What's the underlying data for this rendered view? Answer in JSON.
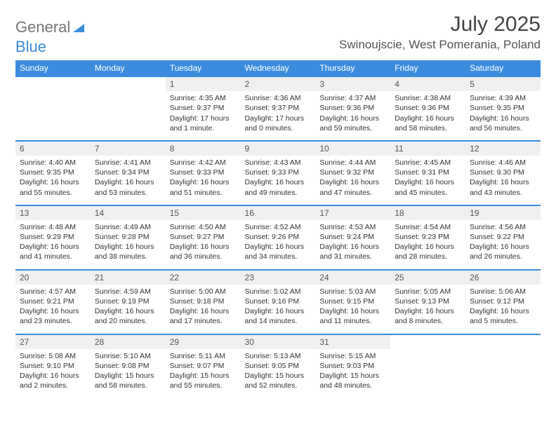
{
  "brand": {
    "part1": "General",
    "part2": "Blue"
  },
  "title": "July 2025",
  "location": "Swinoujscie, West Pomerania, Poland",
  "colors": {
    "header_bg": "#3b8cde",
    "daynum_bg": "#eef0f2",
    "row_border": "#3b8cde",
    "text": "#333333",
    "title_text": "#444444"
  },
  "weekdays": [
    "Sunday",
    "Monday",
    "Tuesday",
    "Wednesday",
    "Thursday",
    "Friday",
    "Saturday"
  ],
  "weeks": [
    [
      null,
      null,
      {
        "n": "1",
        "sunrise": "4:35 AM",
        "sunset": "9:37 PM",
        "daylight": "17 hours and 1 minute."
      },
      {
        "n": "2",
        "sunrise": "4:36 AM",
        "sunset": "9:37 PM",
        "daylight": "17 hours and 0 minutes."
      },
      {
        "n": "3",
        "sunrise": "4:37 AM",
        "sunset": "9:36 PM",
        "daylight": "16 hours and 59 minutes."
      },
      {
        "n": "4",
        "sunrise": "4:38 AM",
        "sunset": "9:36 PM",
        "daylight": "16 hours and 58 minutes."
      },
      {
        "n": "5",
        "sunrise": "4:39 AM",
        "sunset": "9:35 PM",
        "daylight": "16 hours and 56 minutes."
      }
    ],
    [
      {
        "n": "6",
        "sunrise": "4:40 AM",
        "sunset": "9:35 PM",
        "daylight": "16 hours and 55 minutes."
      },
      {
        "n": "7",
        "sunrise": "4:41 AM",
        "sunset": "9:34 PM",
        "daylight": "16 hours and 53 minutes."
      },
      {
        "n": "8",
        "sunrise": "4:42 AM",
        "sunset": "9:33 PM",
        "daylight": "16 hours and 51 minutes."
      },
      {
        "n": "9",
        "sunrise": "4:43 AM",
        "sunset": "9:33 PM",
        "daylight": "16 hours and 49 minutes."
      },
      {
        "n": "10",
        "sunrise": "4:44 AM",
        "sunset": "9:32 PM",
        "daylight": "16 hours and 47 minutes."
      },
      {
        "n": "11",
        "sunrise": "4:45 AM",
        "sunset": "9:31 PM",
        "daylight": "16 hours and 45 minutes."
      },
      {
        "n": "12",
        "sunrise": "4:46 AM",
        "sunset": "9:30 PM",
        "daylight": "16 hours and 43 minutes."
      }
    ],
    [
      {
        "n": "13",
        "sunrise": "4:48 AM",
        "sunset": "9:29 PM",
        "daylight": "16 hours and 41 minutes."
      },
      {
        "n": "14",
        "sunrise": "4:49 AM",
        "sunset": "9:28 PM",
        "daylight": "16 hours and 38 minutes."
      },
      {
        "n": "15",
        "sunrise": "4:50 AM",
        "sunset": "9:27 PM",
        "daylight": "16 hours and 36 minutes."
      },
      {
        "n": "16",
        "sunrise": "4:52 AM",
        "sunset": "9:26 PM",
        "daylight": "16 hours and 34 minutes."
      },
      {
        "n": "17",
        "sunrise": "4:53 AM",
        "sunset": "9:24 PM",
        "daylight": "16 hours and 31 minutes."
      },
      {
        "n": "18",
        "sunrise": "4:54 AM",
        "sunset": "9:23 PM",
        "daylight": "16 hours and 28 minutes."
      },
      {
        "n": "19",
        "sunrise": "4:56 AM",
        "sunset": "9:22 PM",
        "daylight": "16 hours and 26 minutes."
      }
    ],
    [
      {
        "n": "20",
        "sunrise": "4:57 AM",
        "sunset": "9:21 PM",
        "daylight": "16 hours and 23 minutes."
      },
      {
        "n": "21",
        "sunrise": "4:59 AM",
        "sunset": "9:19 PM",
        "daylight": "16 hours and 20 minutes."
      },
      {
        "n": "22",
        "sunrise": "5:00 AM",
        "sunset": "9:18 PM",
        "daylight": "16 hours and 17 minutes."
      },
      {
        "n": "23",
        "sunrise": "5:02 AM",
        "sunset": "9:16 PM",
        "daylight": "16 hours and 14 minutes."
      },
      {
        "n": "24",
        "sunrise": "5:03 AM",
        "sunset": "9:15 PM",
        "daylight": "16 hours and 11 minutes."
      },
      {
        "n": "25",
        "sunrise": "5:05 AM",
        "sunset": "9:13 PM",
        "daylight": "16 hours and 8 minutes."
      },
      {
        "n": "26",
        "sunrise": "5:06 AM",
        "sunset": "9:12 PM",
        "daylight": "16 hours and 5 minutes."
      }
    ],
    [
      {
        "n": "27",
        "sunrise": "5:08 AM",
        "sunset": "9:10 PM",
        "daylight": "16 hours and 2 minutes."
      },
      {
        "n": "28",
        "sunrise": "5:10 AM",
        "sunset": "9:08 PM",
        "daylight": "15 hours and 58 minutes."
      },
      {
        "n": "29",
        "sunrise": "5:11 AM",
        "sunset": "9:07 PM",
        "daylight": "15 hours and 55 minutes."
      },
      {
        "n": "30",
        "sunrise": "5:13 AM",
        "sunset": "9:05 PM",
        "daylight": "15 hours and 52 minutes."
      },
      {
        "n": "31",
        "sunrise": "5:15 AM",
        "sunset": "9:03 PM",
        "daylight": "15 hours and 48 minutes."
      },
      null,
      null
    ]
  ],
  "labels": {
    "sunrise": "Sunrise:",
    "sunset": "Sunset:",
    "daylight": "Daylight:"
  }
}
